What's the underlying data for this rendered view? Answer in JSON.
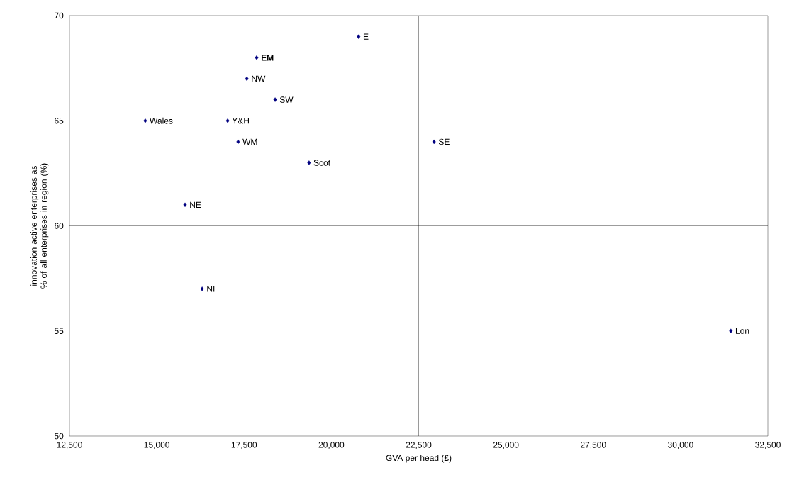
{
  "chart_data": {
    "type": "scatter",
    "xlabel": "GVA per head (£)",
    "ylabel": "innovation active enterprises as % of all enterprises in region (%)",
    "x": [
      20780,
      17860,
      17580,
      18390,
      14670,
      17030,
      17330,
      19360,
      15810,
      22940,
      16300,
      31440
    ],
    "series": [
      {
        "color": "#000080",
        "values": [
          69,
          68,
          67,
          66,
          65,
          65,
          64,
          63,
          61,
          64,
          57,
          55
        ]
      }
    ],
    "marker": "diamond",
    "grid": false,
    "xlim": [
      12500,
      32500
    ],
    "ylim": [
      50,
      70
    ],
    "xticks": [
      {
        "value": 12500,
        "label": "12,500"
      },
      {
        "value": 15000,
        "label": "15,000"
      },
      {
        "value": 17500,
        "label": "17,500"
      },
      {
        "value": 20000,
        "label": "20,000"
      },
      {
        "value": 22500,
        "label": "22,500"
      },
      {
        "value": 25000,
        "label": "25,000"
      },
      {
        "value": 27500,
        "label": "27,500"
      },
      {
        "value": 30000,
        "label": "30,000"
      },
      {
        "value": 32500,
        "label": "32,500"
      }
    ],
    "yticks": [
      50,
      55,
      60,
      65,
      70
    ],
    "ref_lines": [
      {
        "axis": "x",
        "value": 22500,
        "color": "#000000"
      },
      {
        "axis": "y",
        "value": 60,
        "color": "#000000"
      }
    ],
    "annotations": [
      {
        "text": "E",
        "x": 20780,
        "y": 69
      },
      {
        "text": "**EM**",
        "x": 17860,
        "y": 68
      },
      {
        "text": "NW",
        "x": 17580,
        "y": 67
      },
      {
        "text": "SW",
        "x": 18390,
        "y": 66
      },
      {
        "text": "Wales",
        "x": 14670,
        "y": 65
      },
      {
        "text": "Y&H",
        "x": 17030,
        "y": 65
      },
      {
        "text": "WM",
        "x": 17330,
        "y": 64
      },
      {
        "text": "Scot",
        "x": 19360,
        "y": 63
      },
      {
        "text": "NE",
        "x": 15810,
        "y": 61
      },
      {
        "text": "SE",
        "x": 22940,
        "y": 64
      },
      {
        "text": "NI",
        "x": 16300,
        "y": 57
      },
      {
        "text": "Lon",
        "x": 31440,
        "y": 55
      }
    ]
  }
}
